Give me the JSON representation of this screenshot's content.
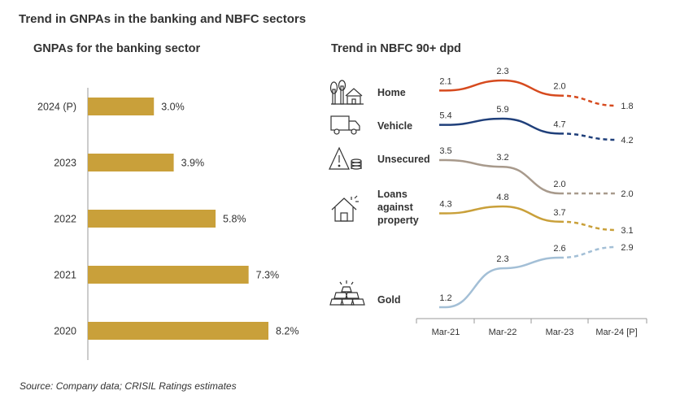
{
  "header": {
    "title": "Trend in GNPAs in the banking and NBFC sectors",
    "source": "Source: Company data; CRISIL Ratings estimates"
  },
  "chart_data": [
    {
      "type": "bar",
      "orientation": "horizontal",
      "title": "GNPAs for the banking sector",
      "categories": [
        "2024 (P)",
        "2023",
        "2022",
        "2021",
        "2020"
      ],
      "values": [
        3.0,
        3.9,
        5.8,
        7.3,
        8.2
      ],
      "value_labels": [
        "3.0%",
        "3.9%",
        "5.8%",
        "7.3%",
        "8.2%"
      ],
      "color": "#C9A03A",
      "xlim": [
        0,
        8.2
      ]
    },
    {
      "type": "line",
      "title": "Trend in NBFC 90+ dpd",
      "categories": [
        "Mar-21",
        "Mar-22",
        "Mar-23",
        "Mar-24 [P]"
      ],
      "projected_from_index": 2,
      "series": [
        {
          "name": "Home",
          "icon": "house-trees-icon",
          "color": "#D64A1E",
          "values": [
            2.1,
            2.3,
            2.0,
            1.8
          ],
          "labels": [
            "2.1",
            "2.3",
            "2.0",
            "1.8"
          ]
        },
        {
          "name": "Vehicle",
          "icon": "truck-icon",
          "color": "#1F3F7A",
          "values": [
            5.4,
            5.9,
            4.7,
            4.2
          ],
          "labels": [
            "5.4",
            "5.9",
            "4.7",
            "4.2"
          ]
        },
        {
          "name": "Unsecured",
          "icon": "warning-coins-icon",
          "color": "#A89A8C",
          "values": [
            3.5,
            3.2,
            2.0,
            2.0
          ],
          "labels": [
            "3.5",
            "3.2",
            "2.0",
            "2.0"
          ]
        },
        {
          "name": "Loans against property",
          "name_lines": [
            "Loans",
            "against",
            "property"
          ],
          "icon": "house-sun-icon",
          "color": "#C9A03A",
          "values": [
            4.3,
            4.8,
            3.7,
            3.1
          ],
          "labels": [
            "4.3",
            "4.8",
            "3.7",
            "3.1"
          ]
        },
        {
          "name": "Gold",
          "icon": "gold-bars-icon",
          "color": "#A3BFD6",
          "values": [
            1.2,
            2.3,
            2.6,
            2.9
          ],
          "labels": [
            "1.2",
            "2.3",
            "2.6",
            "2.9"
          ]
        }
      ]
    }
  ]
}
